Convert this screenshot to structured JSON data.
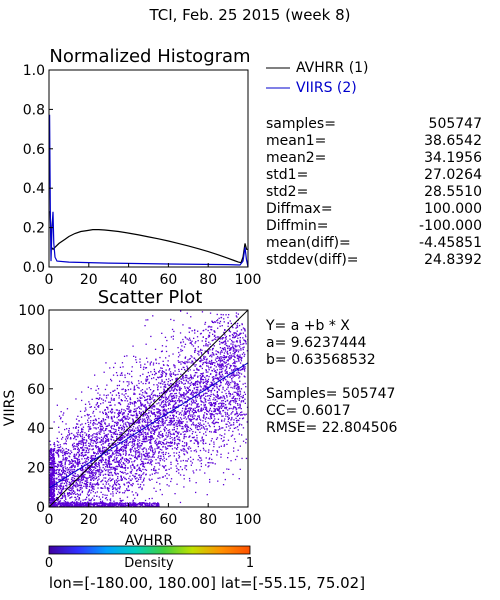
{
  "header": {
    "title": "TCI,  Feb. 25 2015 (week 8)"
  },
  "chart_data": [
    {
      "type": "line",
      "title": "Normalized Histogram",
      "xlim": [
        0,
        100
      ],
      "ylim": [
        0,
        1.0
      ],
      "xticks": [
        "0",
        "20",
        "40",
        "60",
        "80",
        "100"
      ],
      "yticks": [
        "0.0",
        "0.2",
        "0.4",
        "0.6",
        "0.8",
        "1.0"
      ],
      "series": [
        {
          "name": "AVHRR (1)",
          "color": "#000000",
          "points": [
            [
              0,
              0.28
            ],
            [
              0.6,
              0.28
            ],
            [
              1.2,
              0.1
            ],
            [
              2,
              0.09
            ],
            [
              3,
              0.1
            ],
            [
              5,
              0.12
            ],
            [
              8,
              0.14
            ],
            [
              10,
              0.155
            ],
            [
              13,
              0.17
            ],
            [
              16,
              0.18
            ],
            [
              19,
              0.185
            ],
            [
              22,
              0.19
            ],
            [
              25,
              0.19
            ],
            [
              28,
              0.188
            ],
            [
              31,
              0.185
            ],
            [
              35,
              0.18
            ],
            [
              40,
              0.172
            ],
            [
              45,
              0.163
            ],
            [
              50,
              0.153
            ],
            [
              55,
              0.143
            ],
            [
              60,
              0.132
            ],
            [
              65,
              0.12
            ],
            [
              70,
              0.107
            ],
            [
              75,
              0.093
            ],
            [
              80,
              0.078
            ],
            [
              85,
              0.062
            ],
            [
              90,
              0.044
            ],
            [
              93,
              0.033
            ],
            [
              95,
              0.026
            ],
            [
              96.5,
              0.022
            ],
            [
              97.5,
              0.05
            ],
            [
              98.5,
              0.12
            ],
            [
              99.3,
              0.09
            ],
            [
              100,
              0.09
            ]
          ]
        },
        {
          "name": "VIIRS (2)",
          "color": "#0000cc",
          "points": [
            [
              0,
              0.77
            ],
            [
              0.3,
              0.77
            ],
            [
              0.7,
              0.24
            ],
            [
              1,
              0.03
            ],
            [
              1.5,
              0.2
            ],
            [
              2,
              0.28
            ],
            [
              2.4,
              0.12
            ],
            [
              3,
              0.05
            ],
            [
              4,
              0.03
            ],
            [
              10,
              0.025
            ],
            [
              30,
              0.02
            ],
            [
              60,
              0.015
            ],
            [
              90,
              0.012
            ],
            [
              96,
              0.01
            ],
            [
              97.5,
              0.03
            ],
            [
              98.5,
              0.1
            ],
            [
              99.2,
              0.04
            ],
            [
              100,
              0.0
            ]
          ]
        }
      ]
    },
    {
      "type": "scatter",
      "title": "Scatter Plot",
      "xlabel": "AVHRR",
      "ylabel": "VIIRS",
      "xlim": [
        0,
        100
      ],
      "ylim": [
        0,
        100
      ],
      "xticks": [
        "0",
        "20",
        "40",
        "60",
        "80",
        "100"
      ],
      "yticks": [
        "0",
        "20",
        "40",
        "60",
        "80",
        "100"
      ],
      "lines": [
        {
          "kind": "identity",
          "color": "#000000",
          "x": [
            0,
            100
          ],
          "y": [
            0,
            100
          ]
        },
        {
          "kind": "regression",
          "color": "#0000cc",
          "a": 9.6237444,
          "b": 0.63568532
        }
      ],
      "density_colorbar": {
        "label": "Density",
        "min_label": "0",
        "max_label": "1",
        "colors": [
          "#4000a0",
          "#3030ff",
          "#00a0ff",
          "#00d0c0",
          "#40d040",
          "#c0e000",
          "#ff9000",
          "#ff5000"
        ]
      },
      "point_cloud": {
        "color": "#5b00d6",
        "samples": 505747,
        "description_units": "AVHRR vs VIIRS values, dense band along regression"
      }
    }
  ],
  "stats_histogram": [
    {
      "label": "samples=",
      "value": "505747"
    },
    {
      "label": "mean1=",
      "value": "38.6542"
    },
    {
      "label": "mean2=",
      "value": "34.1956"
    },
    {
      "label": "std1=",
      "value": "27.0264"
    },
    {
      "label": "std2=",
      "value": "28.5510"
    },
    {
      "label": "Diffmax=",
      "value": "100.000"
    },
    {
      "label": "Diffmin=",
      "value": "-100.000"
    },
    {
      "label": "mean(diff)=",
      "value": "-4.45851"
    },
    {
      "label": "stddev(diff)=",
      "value": "24.8392"
    }
  ],
  "stats_scatter": {
    "equation": "Y= a +b * X",
    "a_line": "a= 9.6237444",
    "b_line": "b= 0.63568532",
    "samples_line": "Samples= 505747",
    "cc_line": "CC=  0.6017",
    "rmse_line": "RMSE= 22.804506"
  },
  "footer": {
    "region": "lon=[-180.00, 180.00] lat=[-55.15, 75.02]"
  }
}
